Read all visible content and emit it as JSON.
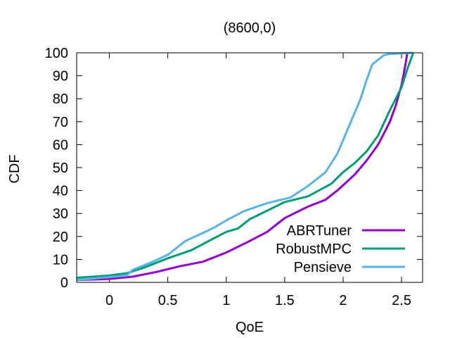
{
  "chart_data": {
    "type": "line",
    "title": "(8600,0)",
    "xlabel": "QoE",
    "ylabel": "CDF",
    "xlim": [
      -0.28,
      2.68
    ],
    "ylim": [
      0,
      100
    ],
    "xticks": [
      0,
      0.5,
      1,
      1.5,
      2,
      2.5
    ],
    "xtick_labels": [
      "0",
      "0.5",
      "1",
      "1.5",
      "2",
      "2.5"
    ],
    "yticks": [
      0,
      10,
      20,
      30,
      40,
      50,
      60,
      70,
      80,
      90,
      100
    ],
    "ytick_labels": [
      "0",
      "10",
      "20",
      "30",
      "40",
      "50",
      "60",
      "70",
      "80",
      "90",
      "100"
    ],
    "grid": false,
    "legend": "bottom-right",
    "series": [
      {
        "name": "ABRTuner",
        "color": "#9400d3",
        "points": [
          [
            -0.28,
            1
          ],
          [
            0,
            1.5
          ],
          [
            0.2,
            2.5
          ],
          [
            0.4,
            4.5
          ],
          [
            0.6,
            7
          ],
          [
            0.8,
            9
          ],
          [
            1.0,
            13
          ],
          [
            1.2,
            18
          ],
          [
            1.35,
            22
          ],
          [
            1.5,
            28
          ],
          [
            1.7,
            33
          ],
          [
            1.85,
            36
          ],
          [
            1.95,
            40
          ],
          [
            2.1,
            47
          ],
          [
            2.2,
            53
          ],
          [
            2.3,
            60
          ],
          [
            2.4,
            70
          ],
          [
            2.45,
            77
          ],
          [
            2.5,
            86
          ],
          [
            2.53,
            94
          ],
          [
            2.55,
            100
          ]
        ]
      },
      {
        "name": "RobustMPC",
        "color": "#009e73",
        "points": [
          [
            -0.28,
            2
          ],
          [
            0,
            3
          ],
          [
            0.15,
            4
          ],
          [
            0.3,
            6.5
          ],
          [
            0.5,
            10.5
          ],
          [
            0.7,
            14
          ],
          [
            0.85,
            18
          ],
          [
            1.0,
            22
          ],
          [
            1.1,
            23.5
          ],
          [
            1.2,
            27.5
          ],
          [
            1.4,
            32.5
          ],
          [
            1.5,
            35
          ],
          [
            1.7,
            37.5
          ],
          [
            1.9,
            43
          ],
          [
            2.0,
            48
          ],
          [
            2.1,
            52
          ],
          [
            2.2,
            57
          ],
          [
            2.3,
            64
          ],
          [
            2.4,
            75
          ],
          [
            2.5,
            85
          ],
          [
            2.55,
            93
          ],
          [
            2.6,
            100
          ]
        ]
      },
      {
        "name": "Pensieve",
        "color": "#56b4e9",
        "points": [
          [
            -0.28,
            1
          ],
          [
            0.15,
            3
          ],
          [
            0.2,
            5.5
          ],
          [
            0.35,
            8.5
          ],
          [
            0.5,
            12
          ],
          [
            0.65,
            18
          ],
          [
            0.8,
            21.5
          ],
          [
            0.9,
            24
          ],
          [
            1.0,
            27
          ],
          [
            1.15,
            31
          ],
          [
            1.35,
            34.5
          ],
          [
            1.55,
            37
          ],
          [
            1.7,
            42
          ],
          [
            1.85,
            48
          ],
          [
            1.95,
            56
          ],
          [
            2.05,
            68
          ],
          [
            2.15,
            80
          ],
          [
            2.2,
            88
          ],
          [
            2.25,
            95
          ],
          [
            2.35,
            99
          ],
          [
            2.4,
            99.5
          ],
          [
            2.6,
            100
          ]
        ]
      }
    ]
  }
}
